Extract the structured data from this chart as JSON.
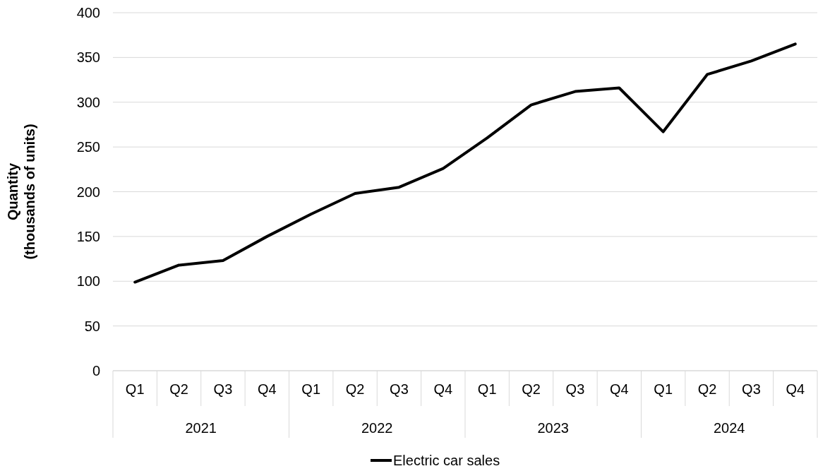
{
  "chart_data": {
    "type": "line",
    "ylabel": "Quantity\n(thousands of units)",
    "categories": [
      "Q1",
      "Q2",
      "Q3",
      "Q4",
      "Q1",
      "Q2",
      "Q3",
      "Q4",
      "Q1",
      "Q2",
      "Q3",
      "Q4",
      "Q1",
      "Q2",
      "Q3",
      "Q4"
    ],
    "annotations": [
      "2021",
      "2022",
      "2023",
      "2024"
    ],
    "series": [
      {
        "name": "Electric car sales",
        "color": "#000000",
        "values": [
          99,
          118,
          123,
          150,
          175,
          198,
          205,
          226,
          260,
          297,
          312,
          316,
          267,
          331,
          346,
          365
        ]
      }
    ],
    "ylim": [
      0,
      400
    ],
    "yticks": [
      0,
      50,
      100,
      150,
      200,
      250,
      300,
      350,
      400
    ],
    "grid": "y",
    "legend": "bottom",
    "line_style": "solid"
  }
}
